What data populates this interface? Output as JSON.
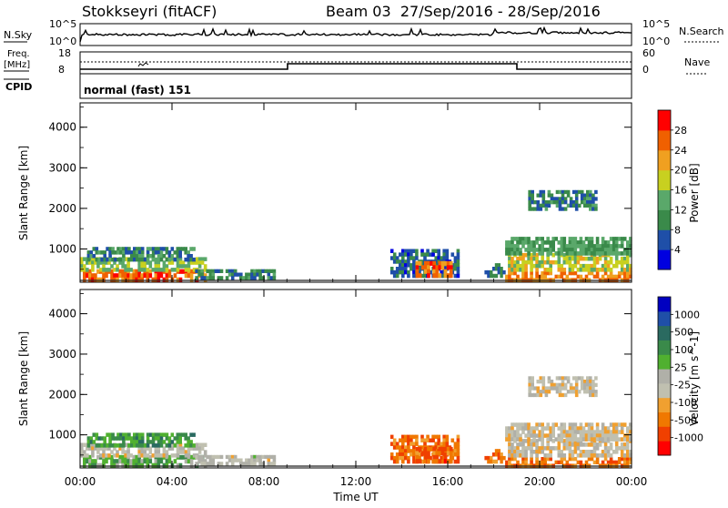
{
  "header": {
    "station": "Stokkseyri (fitACF)",
    "beam_info": "Beam 03  27/Sep/2016 - 28/Sep/2016"
  },
  "status_panels": {
    "nsky_label": "N.Sky",
    "nsearch_label": "N.Search",
    "noise_ticks_left": [
      "10^5",
      "10^0"
    ],
    "noise_ticks_right": [
      "10^5",
      "10^0"
    ],
    "freq_label_1": "Freq.",
    "freq_label_2": "[MHz]",
    "freq_ticks": [
      "18",
      "8"
    ],
    "nave_label": "Nave",
    "nave_ticks": [
      "60",
      "0"
    ],
    "cpid_label": "CPID",
    "cpid_text": "normal (fast) 151"
  },
  "colors": {
    "power_scale": [
      "#0000e0",
      "#1f4fa8",
      "#3a8a4a",
      "#5aa86a",
      "#c8d020",
      "#f0a020",
      "#f06000",
      "#ff0000"
    ],
    "velocity_scale": [
      "#ff0000",
      "#f04000",
      "#f07800",
      "#f0a030",
      "#c0c0b0",
      "#b0b0a8",
      "#50b030",
      "#3a8a4a",
      "#2a6a60",
      "#1f4fa8",
      "#0000c0"
    ]
  },
  "chart_data": [
    {
      "type": "heatmap",
      "name": "power",
      "ylabel": "Slant Range [km]",
      "xlabel": "",
      "colorbar_label": "Power [dB]",
      "colorbar_ticks": [
        "4",
        "8",
        "12",
        "16",
        "20",
        "24",
        "28"
      ],
      "y_ticks": [
        "1000",
        "2000",
        "3000",
        "4000"
      ],
      "ylim": [
        180,
        4600
      ],
      "xlim": [
        0,
        24
      ],
      "colorbar_range": [
        0,
        32
      ],
      "regions": [
        {
          "t0": 0.0,
          "t1": 5.5,
          "r0": 200,
          "r1": 500,
          "v": 26
        },
        {
          "t0": 0.0,
          "t1": 5.5,
          "r0": 450,
          "r1": 800,
          "v": 16
        },
        {
          "t0": 0.3,
          "t1": 5.0,
          "r0": 700,
          "r1": 1050,
          "v": 10
        },
        {
          "t0": 5.0,
          "t1": 8.5,
          "r0": 250,
          "r1": 500,
          "v": 9
        },
        {
          "t0": 13.5,
          "t1": 16.5,
          "r0": 300,
          "r1": 1000,
          "v": 7
        },
        {
          "t0": 14.6,
          "t1": 16.2,
          "r0": 300,
          "r1": 700,
          "v": 26
        },
        {
          "t0": 17.6,
          "t1": 18.5,
          "r0": 300,
          "r1": 650,
          "v": 8
        },
        {
          "t0": 18.5,
          "t1": 24.0,
          "r0": 200,
          "r1": 450,
          "v": 24
        },
        {
          "t0": 18.5,
          "t1": 24.0,
          "r0": 450,
          "r1": 900,
          "v": 18
        },
        {
          "t0": 18.5,
          "t1": 24.0,
          "r0": 850,
          "r1": 1300,
          "v": 12
        },
        {
          "t0": 19.5,
          "t1": 22.5,
          "r0": 1950,
          "r1": 2450,
          "v": 9
        }
      ]
    },
    {
      "type": "heatmap",
      "name": "velocity",
      "ylabel": "Slant Range [km]",
      "xlabel": "Time UT",
      "colorbar_label": "Velocity [m s^-1]",
      "colorbar_ticks": [
        "-1000",
        "-500",
        "-100",
        "-25",
        "25",
        "100",
        "500",
        "1000"
      ],
      "x_ticks": [
        "00:00",
        "04:00",
        "08:00",
        "12:00",
        "16:00",
        "20:00",
        "00:00"
      ],
      "y_ticks": [
        "1000",
        "2000",
        "3000",
        "4000"
      ],
      "ylim": [
        180,
        4600
      ],
      "xlim": [
        0,
        24
      ],
      "colorbar_range": [
        0,
        11
      ],
      "regions": [
        {
          "t0": 0.0,
          "t1": 5.5,
          "r0": 200,
          "r1": 500,
          "v": 6.5
        },
        {
          "t0": 0.0,
          "t1": 5.5,
          "r0": 450,
          "r1": 800,
          "v": 4.8
        },
        {
          "t0": 0.3,
          "t1": 5.0,
          "r0": 700,
          "r1": 1050,
          "v": 7.2
        },
        {
          "t0": 5.0,
          "t1": 8.5,
          "r0": 250,
          "r1": 500,
          "v": 5.0
        },
        {
          "t0": 13.5,
          "t1": 16.5,
          "r0": 300,
          "r1": 1000,
          "v": 2.3
        },
        {
          "t0": 14.6,
          "t1": 16.2,
          "r0": 300,
          "r1": 700,
          "v": 2.0
        },
        {
          "t0": 17.6,
          "t1": 18.5,
          "r0": 300,
          "r1": 650,
          "v": 2.2
        },
        {
          "t0": 18.5,
          "t1": 24.0,
          "r0": 200,
          "r1": 450,
          "v": 2.5
        },
        {
          "t0": 18.5,
          "t1": 24.0,
          "r0": 450,
          "r1": 900,
          "v": 4.5
        },
        {
          "t0": 18.5,
          "t1": 24.0,
          "r0": 850,
          "r1": 1300,
          "v": 4.3
        },
        {
          "t0": 19.5,
          "t1": 22.5,
          "r0": 1950,
          "r1": 2450,
          "v": 4.6
        }
      ]
    }
  ]
}
